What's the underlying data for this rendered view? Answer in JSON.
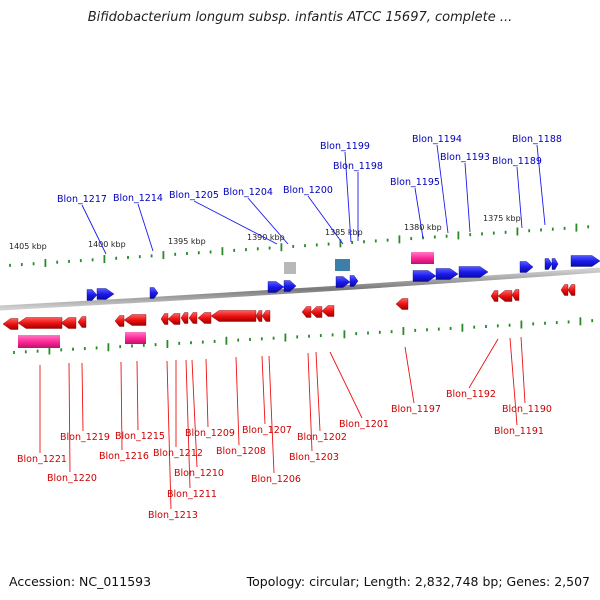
{
  "title": "Bifidobacterium longum subsp. infantis ATCC 15697, complete ...",
  "footer": {
    "accession": "Accession: NC_011593",
    "summary": "Topology: circular; Length: 2,832,748 bp; Genes: 2,507"
  },
  "colors": {
    "forward_gene": "#1a1aee",
    "reverse_gene": "#ee1111",
    "forward_label": "#0000bb",
    "reverse_label": "#cc0000",
    "rna_pink": "#ff2a9a",
    "gray_feature": "#b8b8b8",
    "teal_feature": "#3d7fa8",
    "tick_green": "#2a8a2a",
    "backbone": "#8a8a8a"
  },
  "scale_labels": [
    "1405 kbp",
    "1400 kbp",
    "1395 kbp",
    "1390 kbp",
    "1385 kbp",
    "1380 kbp",
    "1375 kbp"
  ],
  "forward_labels": [
    "Blon_1217",
    "Blon_1214",
    "Blon_1205",
    "Blon_1204",
    "Blon_1200",
    "Blon_1199",
    "Blon_1198",
    "Blon_1195",
    "Blon_1194",
    "Blon_1193",
    "Blon_1189",
    "Blon_1188"
  ],
  "reverse_labels": [
    "Blon_1221",
    "Blon_1220",
    "Blon_1219",
    "Blon_1216",
    "Blon_1215",
    "Blon_1213",
    "Blon_1212",
    "Blon_1211",
    "Blon_1210",
    "Blon_1209",
    "Blon_1208",
    "Blon_1207",
    "Blon_1206",
    "Blon_1202",
    "Blon_1203",
    "Blon_1201",
    "Blon_1197",
    "Blon_1192",
    "Blon_1190",
    "Blon_1191"
  ]
}
